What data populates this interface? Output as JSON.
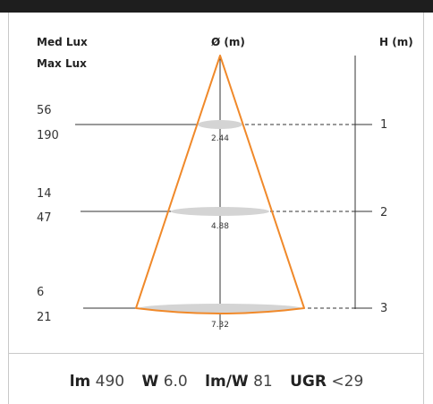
{
  "header": {
    "med_lux_label": "Med Lux",
    "max_lux_label": "Max Lux",
    "diameter_label": "Ø (m)",
    "height_label": "H (m)"
  },
  "levels": [
    {
      "height": "1",
      "med_lux": "56",
      "max_lux": "190",
      "diameter": "2.44"
    },
    {
      "height": "2",
      "med_lux": "14",
      "max_lux": "47",
      "diameter": "4.88"
    },
    {
      "height": "3",
      "med_lux": "6",
      "max_lux": "21",
      "diameter": "7.32"
    }
  ],
  "specs": {
    "lm_label": "lm",
    "lm_value": "490",
    "w_label": "W",
    "w_value": "6.0",
    "lmw_label": "lm/W",
    "lmw_value": "81",
    "ugr_label": "UGR",
    "ugr_value": "<29"
  },
  "colors": {
    "beam": "#f0892a",
    "ellipse": "#d4d4d4",
    "line": "#333333",
    "frame": "#c9c9c9"
  }
}
